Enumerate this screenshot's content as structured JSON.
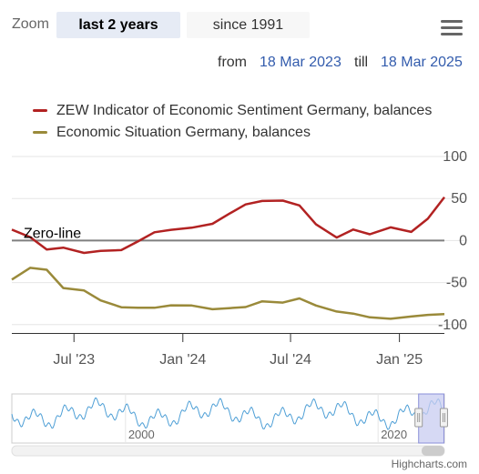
{
  "zoom": {
    "label": "Zoom",
    "buttons": [
      {
        "label": "last 2 years",
        "active": true
      },
      {
        "label": "since 1991",
        "active": false
      }
    ]
  },
  "range": {
    "from_label": "from",
    "from_value": "18 Mar 2023",
    "till_label": "till",
    "till_value": "18 Mar 2025"
  },
  "menu_icon": "hamburger-menu-icon",
  "credits": "Highcharts.com",
  "colors": {
    "sentiment": "#b22222",
    "situation": "#9a8a3a",
    "zero_line": "#7f7f7f",
    "navigator_line": "#4e9fd6",
    "navigator_mask": "#c8ccf0",
    "link": "#335cad"
  },
  "chart_data": {
    "type": "line",
    "legend_placement": "top-left",
    "series": [
      {
        "name": "ZEW Indicator of Economic Sentiment Germany, balances",
        "color": "#b22222",
        "x": [
          "2023-03-18",
          "2023-04-18",
          "2023-05-16",
          "2023-06-13",
          "2023-07-18",
          "2023-08-15",
          "2023-09-19",
          "2023-10-17",
          "2023-11-14",
          "2023-12-12",
          "2024-01-16",
          "2024-02-20",
          "2024-03-19",
          "2024-04-16",
          "2024-05-14",
          "2024-06-18",
          "2024-07-16",
          "2024-08-13",
          "2024-09-17",
          "2024-10-15",
          "2024-11-12",
          "2024-12-17",
          "2025-01-21",
          "2025-02-18",
          "2025-03-18"
        ],
        "values": [
          13.0,
          4.1,
          -10.7,
          -8.5,
          -14.7,
          -12.3,
          -11.4,
          -1.1,
          9.8,
          12.8,
          15.2,
          19.9,
          31.7,
          42.9,
          47.1,
          47.5,
          41.8,
          19.2,
          3.6,
          13.1,
          7.4,
          15.7,
          10.3,
          26.0,
          51.6
        ]
      },
      {
        "name": "Economic Situation Germany, balances",
        "color": "#9a8a3a",
        "x": [
          "2023-03-18",
          "2023-04-18",
          "2023-05-16",
          "2023-06-13",
          "2023-07-18",
          "2023-08-15",
          "2023-09-19",
          "2023-10-17",
          "2023-11-14",
          "2023-12-12",
          "2024-01-16",
          "2024-02-20",
          "2024-03-19",
          "2024-04-16",
          "2024-05-14",
          "2024-06-18",
          "2024-07-16",
          "2024-08-13",
          "2024-09-17",
          "2024-10-15",
          "2024-11-12",
          "2024-12-17",
          "2025-01-21",
          "2025-02-18",
          "2025-03-18"
        ],
        "values": [
          -46.5,
          -32.5,
          -34.8,
          -56.5,
          -59.5,
          -71.3,
          -79.4,
          -79.9,
          -80.0,
          -77.1,
          -77.3,
          -81.7,
          -80.5,
          -79.2,
          -72.3,
          -73.8,
          -68.9,
          -77.3,
          -84.5,
          -86.9,
          -91.4,
          -93.1,
          -90.4,
          -88.5,
          -87.6
        ]
      }
    ],
    "y_ticks": [
      "100",
      "50",
      "0",
      "-50",
      "-100"
    ],
    "ylim": [
      -110,
      100
    ],
    "x_ticks": [
      {
        "label": "Jul '23",
        "date": "2023-07-01"
      },
      {
        "label": "Jan '24",
        "date": "2024-01-01"
      },
      {
        "label": "Jul '24",
        "date": "2024-07-01"
      },
      {
        "label": "Jan '25",
        "date": "2025-01-01"
      }
    ],
    "xlim": [
      "2023-03-18",
      "2025-03-18"
    ],
    "plot_lines": [
      {
        "value": 0,
        "label": "Zero-line"
      }
    ],
    "grid": "horizontal",
    "navigator": {
      "x_ticks": [
        {
          "label": "2000",
          "year": 2000
        },
        {
          "label": "2020",
          "year": 2020
        }
      ],
      "xlim_years": [
        1991,
        2025.25
      ],
      "selected_years": [
        2023.21,
        2025.21
      ]
    }
  }
}
